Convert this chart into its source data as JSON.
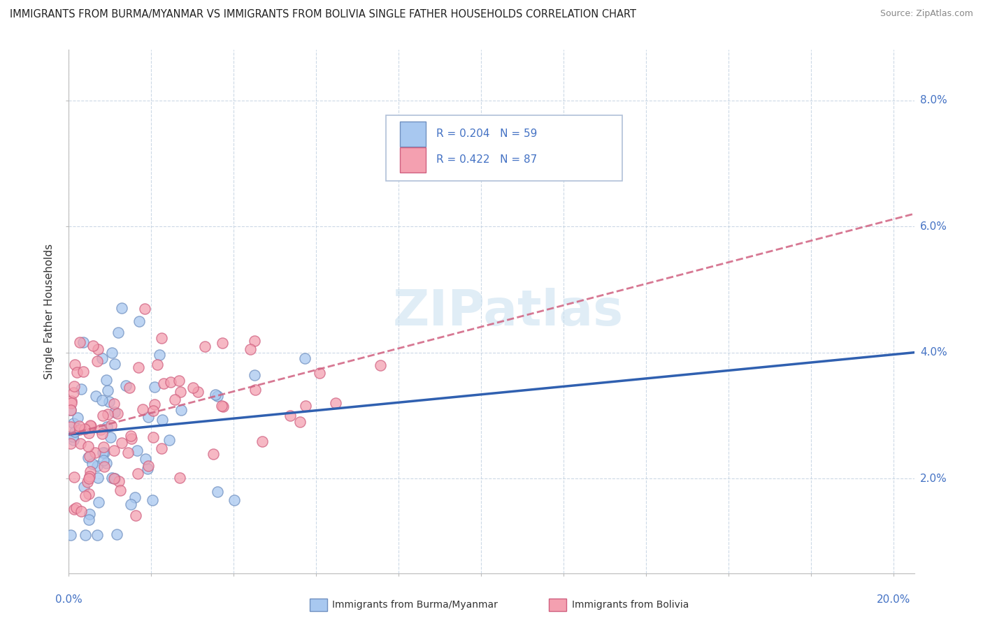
{
  "title": "IMMIGRANTS FROM BURMA/MYANMAR VS IMMIGRANTS FROM BOLIVIA SINGLE FATHER HOUSEHOLDS CORRELATION CHART",
  "source": "Source: ZipAtlas.com",
  "ylabel": "Single Father Households",
  "ytick_labels": [
    "2.0%",
    "4.0%",
    "6.0%",
    "8.0%"
  ],
  "ytick_values": [
    0.02,
    0.04,
    0.06,
    0.08
  ],
  "xlim": [
    0.0,
    0.205
  ],
  "ylim": [
    0.005,
    0.088
  ],
  "color_burma": "#a8c8f0",
  "color_bolivia": "#f4a0b0",
  "edge_burma": "#7090c0",
  "edge_bolivia": "#d06080",
  "line_burma": "#3060b0",
  "line_bolivia": "#d06080",
  "watermark": "ZIPatlas",
  "legend_r1": "R = 0.204   N = 59",
  "legend_r2": "R = 0.422   N = 87",
  "burma_trend": [
    0.0,
    0.027,
    0.205,
    0.04
  ],
  "bolivia_trend": [
    0.0,
    0.027,
    0.205,
    0.062
  ],
  "grid_color": "#c0d0e0",
  "background": "#ffffff"
}
